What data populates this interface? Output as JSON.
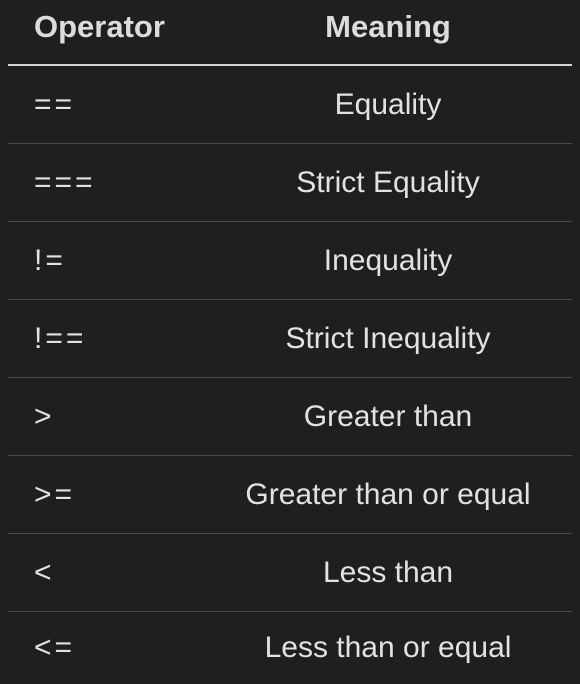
{
  "table": {
    "headers": {
      "operator": "Operator",
      "meaning": "Meaning"
    },
    "rows": [
      {
        "operator": "==",
        "meaning": "Equality"
      },
      {
        "operator": "===",
        "meaning": "Strict Equality"
      },
      {
        "operator": "!=",
        "meaning": "Inequality"
      },
      {
        "operator": "!==",
        "meaning": "Strict Inequality"
      },
      {
        "operator": ">",
        "meaning": "Greater than"
      },
      {
        "operator": ">=",
        "meaning": "Greater than or equal"
      },
      {
        "operator": "<",
        "meaning": "Less than"
      },
      {
        "operator": "<=",
        "meaning": "Less than or equal"
      }
    ]
  },
  "colors": {
    "background": "#1f1f1f",
    "text": "#e2e2e2",
    "header_rule": "#d6d6d6",
    "row_rule": "#4a4a4a"
  }
}
